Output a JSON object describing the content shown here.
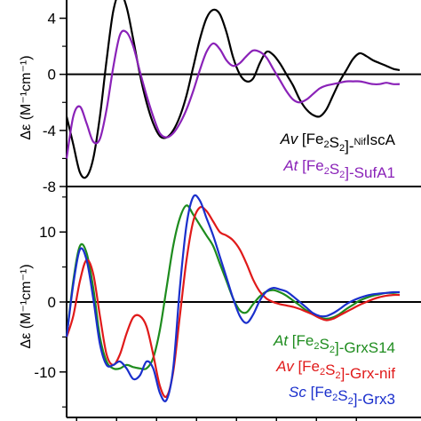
{
  "chart_data": [
    {
      "type": "line",
      "title": "",
      "xlabel": "",
      "ylabel": "Δε (M⁻¹cm⁻¹)",
      "ylim": [
        -8,
        5.3
      ],
      "yticks": [
        4,
        0,
        -4,
        -8
      ],
      "grid": false,
      "legend_position": "bottom-right",
      "series": [
        {
          "name": "Av [Fe2S2]-NifIscA",
          "color": "#000000",
          "legend_parts": [
            {
              "t": "Av",
              "style": "italic"
            },
            {
              "t": " [Fe",
              "style": "normal"
            },
            {
              "t": "2",
              "style": "sub"
            },
            {
              "t": "S",
              "style": "normal"
            },
            {
              "t": "2",
              "style": "sub"
            },
            {
              "t": "]-",
              "style": "normal"
            },
            {
              "t": "Nif",
              "style": "sup"
            },
            {
              "t": "IscA",
              "style": "normal"
            }
          ],
          "x": [
            0.0,
            0.02,
            0.04,
            0.06,
            0.08,
            0.1,
            0.12,
            0.14,
            0.16,
            0.18,
            0.2,
            0.22,
            0.24,
            0.26,
            0.28,
            0.3,
            0.32,
            0.34,
            0.36,
            0.38,
            0.4,
            0.42,
            0.44,
            0.46,
            0.48,
            0.5,
            0.52,
            0.54,
            0.56,
            0.58,
            0.6,
            0.62,
            0.64,
            0.66,
            0.68,
            0.7,
            0.72,
            0.74,
            0.76,
            0.78,
            0.8,
            0.82,
            0.84,
            0.86,
            0.88,
            0.9,
            0.92,
            0.94,
            0.96,
            0.98,
            1.0
          ],
          "y": [
            -3.0,
            -5.0,
            -7.0,
            -7.3,
            -6.0,
            -3.0,
            1.0,
            4.5,
            5.8,
            4.8,
            2.5,
            0.0,
            -2.0,
            -3.5,
            -4.4,
            -4.5,
            -4.0,
            -3.0,
            -1.5,
            0.5,
            2.5,
            4.0,
            4.6,
            4.3,
            3.0,
            1.2,
            0.0,
            -0.5,
            -0.3,
            0.8,
            1.6,
            1.4,
            0.8,
            0.0,
            -0.8,
            -1.8,
            -2.5,
            -2.9,
            -3.0,
            -2.5,
            -1.5,
            -0.5,
            0.3,
            1.1,
            1.5,
            1.3,
            1.0,
            0.8,
            0.6,
            0.4,
            0.3
          ]
        },
        {
          "name": "At [Fe2S2]-SufA1",
          "color": "#8a22b8",
          "legend_parts": [
            {
              "t": "At",
              "style": "italic"
            },
            {
              "t": " [Fe",
              "style": "normal"
            },
            {
              "t": "2",
              "style": "sub"
            },
            {
              "t": "S",
              "style": "normal"
            },
            {
              "t": "2",
              "style": "sub"
            },
            {
              "t": "]-SufA1",
              "style": "normal"
            }
          ],
          "x": [
            0.0,
            0.02,
            0.04,
            0.06,
            0.08,
            0.1,
            0.12,
            0.14,
            0.16,
            0.18,
            0.2,
            0.22,
            0.24,
            0.26,
            0.28,
            0.3,
            0.32,
            0.34,
            0.36,
            0.38,
            0.4,
            0.42,
            0.44,
            0.46,
            0.48,
            0.5,
            0.52,
            0.54,
            0.56,
            0.58,
            0.6,
            0.62,
            0.64,
            0.66,
            0.68,
            0.7,
            0.72,
            0.74,
            0.76,
            0.78,
            0.8,
            0.82,
            0.84,
            0.86,
            0.88,
            0.9,
            0.92,
            0.94,
            0.96,
            0.98,
            1.0
          ],
          "y": [
            -6.0,
            -3.0,
            -2.3,
            -3.5,
            -4.8,
            -4.6,
            -2.5,
            0.5,
            2.8,
            3.0,
            2.0,
            0.2,
            -1.5,
            -3.0,
            -4.2,
            -4.5,
            -4.2,
            -3.5,
            -2.5,
            -1.2,
            0.3,
            1.6,
            2.2,
            1.8,
            1.0,
            0.6,
            0.8,
            1.3,
            1.7,
            1.6,
            1.2,
            0.4,
            -0.4,
            -1.2,
            -1.8,
            -2.0,
            -1.8,
            -1.4,
            -1.0,
            -0.8,
            -0.7,
            -0.6,
            -0.5,
            -0.5,
            -0.5,
            -0.6,
            -0.7,
            -0.7,
            -0.6,
            -0.7,
            -0.7
          ]
        }
      ]
    },
    {
      "type": "line",
      "title": "",
      "xlabel": "",
      "ylabel": "Δε (M⁻¹cm⁻¹)",
      "ylim": [
        -16.5,
        16.5
      ],
      "yticks": [
        10,
        0,
        -10
      ],
      "grid": false,
      "legend_position": "bottom-right",
      "series": [
        {
          "name": "At [Fe2S2]-GrxS14",
          "color": "#1e8c1e",
          "legend_parts": [
            {
              "t": "At",
              "style": "italic"
            },
            {
              "t": " [Fe",
              "style": "normal"
            },
            {
              "t": "2",
              "style": "sub"
            },
            {
              "t": "S",
              "style": "normal"
            },
            {
              "t": "2",
              "style": "sub"
            },
            {
              "t": "]-GrxS14",
              "style": "normal"
            }
          ],
          "x": [
            0.0,
            0.02,
            0.04,
            0.06,
            0.08,
            0.1,
            0.12,
            0.14,
            0.16,
            0.18,
            0.2,
            0.22,
            0.24,
            0.26,
            0.28,
            0.3,
            0.32,
            0.34,
            0.36,
            0.38,
            0.4,
            0.42,
            0.44,
            0.46,
            0.48,
            0.5,
            0.52,
            0.54,
            0.56,
            0.58,
            0.6,
            0.62,
            0.64,
            0.66,
            0.68,
            0.7,
            0.72,
            0.74,
            0.76,
            0.78,
            0.8,
            0.82,
            0.84,
            0.86,
            0.88,
            0.9,
            0.92,
            0.94,
            0.96,
            0.98,
            1.0
          ],
          "y": [
            -5.0,
            3.0,
            8.0,
            7.0,
            2.0,
            -5.0,
            -8.5,
            -9.5,
            -9.5,
            -9.0,
            -9.3,
            -9.5,
            -9.5,
            -8.0,
            -4.0,
            2.0,
            8.0,
            12.0,
            13.8,
            12.5,
            11.0,
            9.5,
            8.0,
            5.5,
            3.0,
            0.5,
            -1.2,
            -1.5,
            -0.3,
            0.8,
            1.5,
            1.7,
            1.4,
            0.9,
            0.2,
            -0.5,
            -1.2,
            -1.7,
            -2.2,
            -2.4,
            -2.2,
            -1.7,
            -1.0,
            -0.4,
            0.2,
            0.6,
            0.9,
            1.1,
            1.3,
            1.3,
            1.4
          ]
        },
        {
          "name": "Av [Fe2S2]-Grx-nif",
          "color": "#e01a1a",
          "legend_parts": [
            {
              "t": "Av",
              "style": "italic"
            },
            {
              "t": " [Fe",
              "style": "normal"
            },
            {
              "t": "2",
              "style": "sub"
            },
            {
              "t": "S",
              "style": "normal"
            },
            {
              "t": "2",
              "style": "sub"
            },
            {
              "t": "]-Grx-nif",
              "style": "normal"
            }
          ],
          "x": [
            0.0,
            0.02,
            0.04,
            0.06,
            0.08,
            0.1,
            0.12,
            0.14,
            0.16,
            0.18,
            0.2,
            0.22,
            0.24,
            0.26,
            0.28,
            0.3,
            0.32,
            0.34,
            0.36,
            0.38,
            0.4,
            0.42,
            0.44,
            0.46,
            0.48,
            0.5,
            0.52,
            0.54,
            0.56,
            0.58,
            0.6,
            0.62,
            0.64,
            0.66,
            0.68,
            0.7,
            0.72,
            0.74,
            0.76,
            0.78,
            0.8,
            0.82,
            0.84,
            0.86,
            0.88,
            0.9,
            0.92,
            0.94,
            0.96,
            0.98,
            1.0
          ],
          "y": [
            -5.0,
            -2.0,
            3.0,
            6.0,
            4.0,
            -2.0,
            -7.5,
            -9.0,
            -7.5,
            -4.5,
            -2.2,
            -2.0,
            -3.5,
            -7.5,
            -12.0,
            -13.5,
            -10.0,
            -2.0,
            6.0,
            11.5,
            13.5,
            13.0,
            11.5,
            10.0,
            9.5,
            8.8,
            7.5,
            5.5,
            3.2,
            1.5,
            0.5,
            0.0,
            -0.3,
            -0.5,
            -0.7,
            -1.0,
            -1.4,
            -1.8,
            -2.3,
            -2.6,
            -2.4,
            -1.9,
            -1.4,
            -0.9,
            -0.4,
            0.0,
            0.4,
            0.7,
            0.9,
            1.0,
            1.0
          ]
        },
        {
          "name": "Sc [Fe2S2]-Grx3",
          "color": "#1a2fcc",
          "legend_parts": [
            {
              "t": "Sc",
              "style": "italic"
            },
            {
              "t": " [Fe",
              "style": "normal"
            },
            {
              "t": "2",
              "style": "sub"
            },
            {
              "t": "S",
              "style": "normal"
            },
            {
              "t": "2",
              "style": "sub"
            },
            {
              "t": "]-Grx3",
              "style": "normal"
            }
          ],
          "x": [
            0.0,
            0.02,
            0.04,
            0.06,
            0.08,
            0.1,
            0.12,
            0.14,
            0.16,
            0.18,
            0.2,
            0.22,
            0.24,
            0.26,
            0.28,
            0.3,
            0.32,
            0.34,
            0.36,
            0.38,
            0.4,
            0.42,
            0.44,
            0.46,
            0.48,
            0.5,
            0.52,
            0.54,
            0.56,
            0.58,
            0.6,
            0.62,
            0.64,
            0.66,
            0.68,
            0.7,
            0.72,
            0.74,
            0.76,
            0.78,
            0.8,
            0.82,
            0.84,
            0.86,
            0.88,
            0.9,
            0.92,
            0.94,
            0.96,
            0.98,
            1.0
          ],
          "y": [
            -5.0,
            2.5,
            7.5,
            6.0,
            0.5,
            -6.0,
            -9.0,
            -9.0,
            -8.5,
            -9.5,
            -11.0,
            -10.5,
            -8.5,
            -9.5,
            -13.0,
            -14.0,
            -9.5,
            2.0,
            11.0,
            15.0,
            14.5,
            12.0,
            9.5,
            6.5,
            3.5,
            0.5,
            -2.0,
            -3.0,
            -1.8,
            0.2,
            1.5,
            2.0,
            1.8,
            1.5,
            0.8,
            0.0,
            -0.8,
            -1.6,
            -2.0,
            -2.0,
            -1.6,
            -1.0,
            -0.3,
            0.2,
            0.6,
            0.9,
            1.1,
            1.2,
            1.3,
            1.4,
            1.4
          ]
        }
      ]
    }
  ]
}
